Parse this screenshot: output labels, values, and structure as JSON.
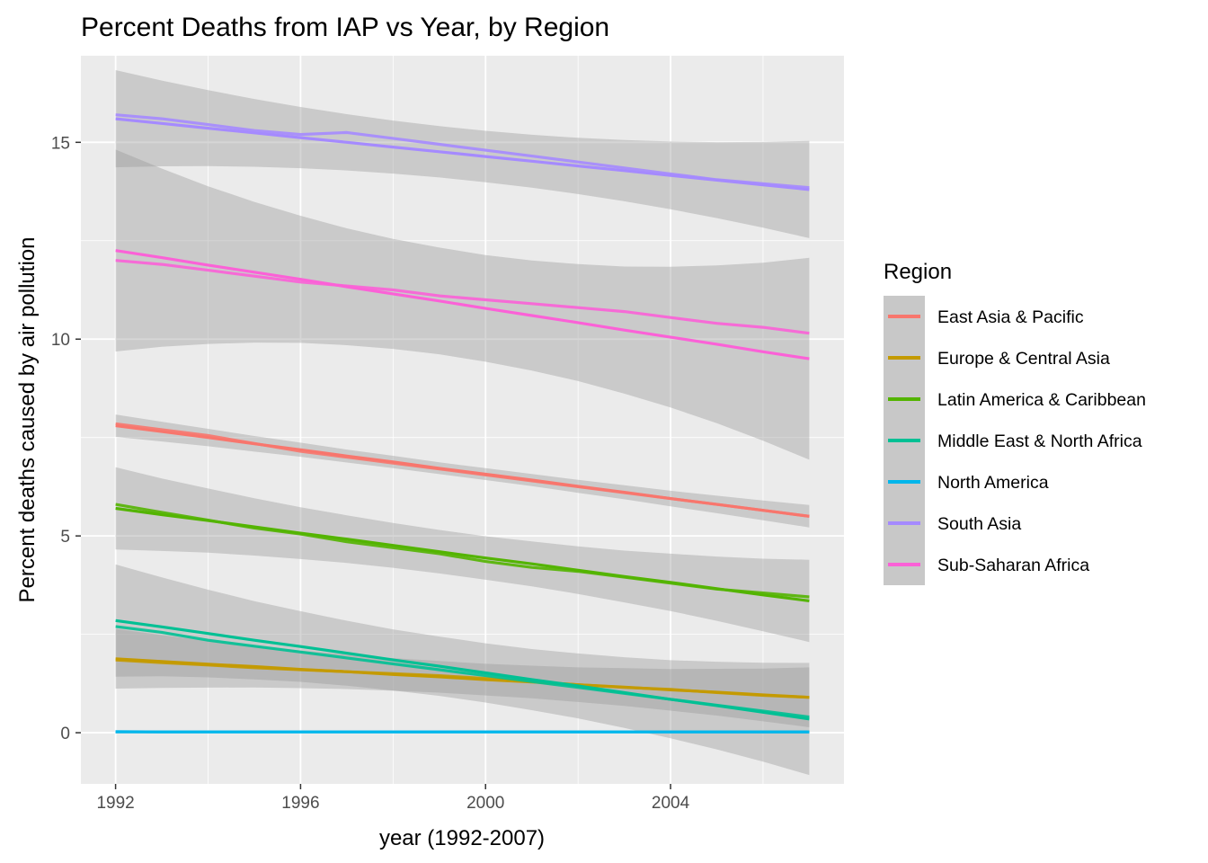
{
  "chart_data": {
    "type": "line",
    "title": "Percent Deaths from IAP vs Year, by Region",
    "xlabel": "year (1992-2007)",
    "ylabel": "Percent deaths caused by air pollution",
    "xlim": [
      1991.25,
      2007.75
    ],
    "ylim": [
      -1.3,
      17.2
    ],
    "x_ticks": [
      1992,
      1996,
      2000,
      2004
    ],
    "y_ticks": [
      0,
      5,
      10,
      15
    ],
    "grid": true,
    "legend": {
      "title": "Region",
      "position": "right"
    },
    "x": [
      1992,
      1993,
      1994,
      1995,
      1996,
      1997,
      1998,
      1999,
      2000,
      2001,
      2002,
      2003,
      2004,
      2005,
      2006,
      2007
    ],
    "series": [
      {
        "name": "East Asia & Pacific",
        "color": "#F8766D",
        "values": [
          7.85,
          7.7,
          7.55,
          7.35,
          7.15,
          7.0,
          6.85,
          6.7,
          6.55,
          6.4,
          6.25,
          6.1,
          5.95,
          5.8,
          5.65,
          5.5
        ],
        "fit": [
          7.8,
          7.65,
          7.5,
          7.34,
          7.19,
          7.03,
          6.88,
          6.72,
          6.57,
          6.42,
          6.26,
          6.11,
          5.95,
          5.8,
          5.65,
          5.5
        ],
        "se": 0.15
      },
      {
        "name": "Europe & Central Asia",
        "color": "#C49A00",
        "values": [
          1.85,
          1.78,
          1.72,
          1.65,
          1.6,
          1.55,
          1.5,
          1.45,
          1.38,
          1.3,
          1.22,
          1.15,
          1.1,
          1.02,
          0.95,
          0.9
        ],
        "fit": [
          1.88,
          1.81,
          1.74,
          1.68,
          1.61,
          1.55,
          1.48,
          1.42,
          1.35,
          1.29,
          1.22,
          1.16,
          1.09,
          1.03,
          0.96,
          0.9
        ],
        "se": 0.4
      },
      {
        "name": "Latin America & Caribbean",
        "color": "#53B400",
        "values": [
          5.8,
          5.6,
          5.4,
          5.2,
          5.05,
          4.85,
          4.7,
          4.55,
          4.35,
          4.2,
          4.1,
          3.95,
          3.8,
          3.65,
          3.55,
          3.45
        ],
        "fit": [
          5.7,
          5.54,
          5.39,
          5.23,
          5.07,
          4.92,
          4.76,
          4.6,
          4.44,
          4.29,
          4.13,
          3.97,
          3.82,
          3.66,
          3.5,
          3.35
        ],
        "se": 0.55
      },
      {
        "name": "Middle East & North Africa",
        "color": "#00C094",
        "values": [
          2.7,
          2.55,
          2.35,
          2.2,
          2.05,
          1.9,
          1.75,
          1.6,
          1.45,
          1.3,
          1.15,
          1.0,
          0.85,
          0.7,
          0.55,
          0.4
        ],
        "fit": [
          2.85,
          2.69,
          2.52,
          2.35,
          2.19,
          2.02,
          1.85,
          1.69,
          1.52,
          1.35,
          1.19,
          1.02,
          0.85,
          0.69,
          0.52,
          0.35
        ],
        "se": 0.75
      },
      {
        "name": "North America",
        "color": "#00B6EB",
        "values": [
          0.03,
          0.02,
          0.02,
          0.02,
          0.02,
          0.02,
          0.02,
          0.02,
          0.02,
          0.02,
          0.02,
          0.02,
          0.02,
          0.02,
          0.02,
          0.02
        ],
        "fit": [
          0.02,
          0.02,
          0.02,
          0.02,
          0.02,
          0.02,
          0.02,
          0.02,
          0.02,
          0.02,
          0.02,
          0.02,
          0.02,
          0.02,
          0.02,
          0.02
        ],
        "se": 0.02
      },
      {
        "name": "South Asia",
        "color": "#A58AFF",
        "values": [
          15.7,
          15.6,
          15.45,
          15.3,
          15.2,
          15.25,
          15.1,
          14.95,
          14.8,
          14.65,
          14.5,
          14.35,
          14.2,
          14.05,
          13.95,
          13.85
        ],
        "fit": [
          15.6,
          15.48,
          15.36,
          15.24,
          15.12,
          15.0,
          14.88,
          14.76,
          14.64,
          14.52,
          14.4,
          14.28,
          14.16,
          14.04,
          13.92,
          13.8
        ],
        "se": 0.65
      },
      {
        "name": "Sub-Saharan Africa",
        "color": "#FB61D7",
        "values": [
          12.0,
          11.9,
          11.75,
          11.6,
          11.45,
          11.35,
          11.25,
          11.1,
          11.0,
          10.9,
          10.8,
          10.7,
          10.55,
          10.4,
          10.3,
          10.15
        ],
        "fit": [
          12.25,
          12.07,
          11.88,
          11.7,
          11.52,
          11.33,
          11.15,
          10.97,
          10.78,
          10.6,
          10.42,
          10.23,
          10.05,
          9.87,
          9.68,
          9.5
        ],
        "se": 1.35
      }
    ]
  }
}
